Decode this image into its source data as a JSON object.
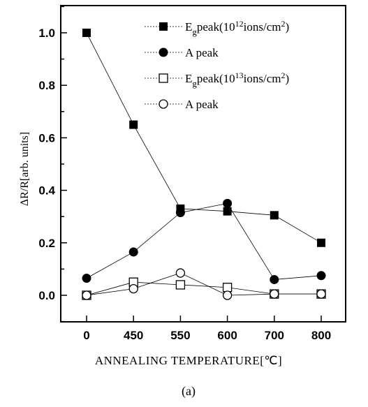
{
  "chart_data": {
    "type": "line",
    "title": "",
    "xlabel": "ANNEALING TEMPERATURE[℃]",
    "ylabel": "ΔR/R[arb. units]",
    "caption": "(a)",
    "categories": [
      "0",
      "450",
      "550",
      "600",
      "700",
      "800"
    ],
    "ylim": [
      -0.1,
      1.1
    ],
    "yticks": [
      "0.0",
      "0.2",
      "0.4",
      "0.6",
      "0.8",
      "1.0"
    ],
    "ytick_values": [
      0.0,
      0.2,
      0.4,
      0.6,
      0.8,
      1.0
    ],
    "grid": false,
    "legend_position": "top-right",
    "series": [
      {
        "name": "Egpeak(10¹²ions/cm²)",
        "marker": "filled-square",
        "values": [
          1.0,
          0.65,
          0.33,
          0.32,
          0.305,
          0.2
        ]
      },
      {
        "name": "A peak",
        "marker": "filled-circle",
        "values": [
          0.065,
          0.165,
          0.315,
          0.35,
          0.06,
          0.075
        ]
      },
      {
        "name": "Egpeak(10¹³ions/cm²)",
        "marker": "open-square",
        "values": [
          0.0,
          0.05,
          0.04,
          0.03,
          0.005,
          0.005
        ]
      },
      {
        "name": "A peak",
        "marker": "open-circle",
        "values": [
          0.0,
          0.025,
          0.085,
          0.0,
          0.005,
          0.005
        ]
      }
    ],
    "legend": [
      {
        "pre": "E",
        "sub": "g",
        "post": "peak(10",
        "sup": "12",
        "tail": "ions/cm",
        "sup2": "2",
        "close": ")"
      },
      {
        "text": "A peak"
      },
      {
        "pre": "E",
        "sub": "g",
        "post": "peak(10",
        "sup": "13",
        "tail": "ions/cm",
        "sup2": "2",
        "close": ")"
      },
      {
        "text": "A peak"
      }
    ]
  }
}
